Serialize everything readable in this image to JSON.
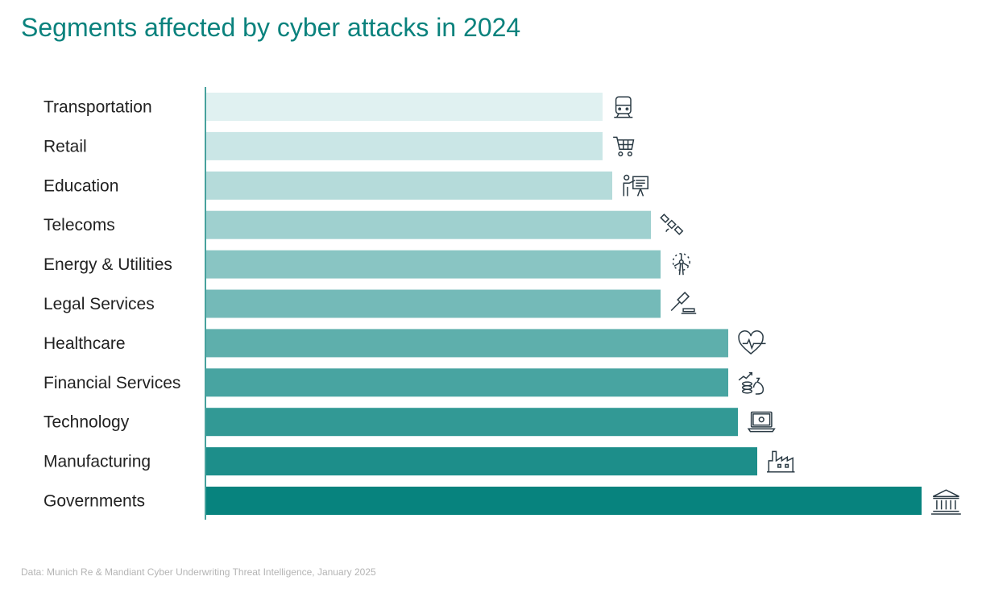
{
  "chart_data": {
    "type": "bar",
    "orientation": "horizontal",
    "title": "Segments affected by cyber attacks in 2024",
    "xlabel": "",
    "ylabel": "",
    "categories": [
      "Transportation",
      "Retail",
      "Education",
      "Telecoms",
      "Energy & Utilities",
      "Legal Services",
      "Healthcare",
      "Financial Services",
      "Technology",
      "Manufacturing",
      "Governments"
    ],
    "values": [
      41,
      41,
      42,
      46,
      47,
      47,
      54,
      54,
      55,
      57,
      74
    ],
    "value_units": "relative (no axis shown)",
    "icons": [
      "train-icon",
      "shopping-cart-icon",
      "teacher-board-icon",
      "satellite-icon",
      "wind-turbine-icon",
      "gavel-icon",
      "heart-pulse-icon",
      "money-growth-icon",
      "laptop-gear-icon",
      "factory-icon",
      "government-building-icon"
    ],
    "grid": false,
    "legend": "none",
    "colors": {
      "light": "#e0f1f1",
      "dark": "#07837e",
      "title": "#0a827d",
      "icon": "#2a3a44"
    }
  },
  "footer": "Data: Munich Re & Mandiant Cyber Underwriting Threat Intelligence, January 2025"
}
